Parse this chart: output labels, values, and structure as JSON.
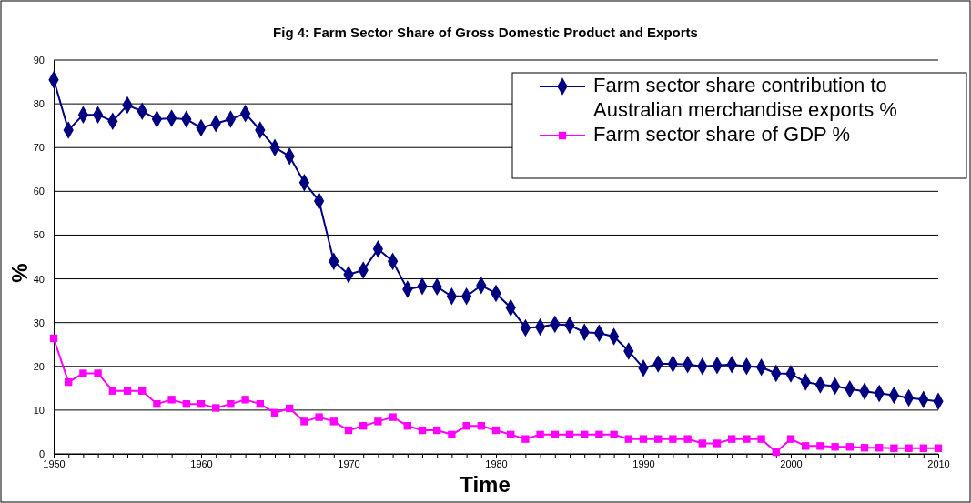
{
  "chart_data": {
    "type": "line",
    "title": "Fig 4: Farm Sector Share of Gross Domestic Product and Exports",
    "xlabel": "Time",
    "ylabel": "%",
    "x": [
      1950,
      1951,
      1952,
      1953,
      1954,
      1955,
      1956,
      1957,
      1958,
      1959,
      1960,
      1961,
      1962,
      1963,
      1964,
      1965,
      1966,
      1967,
      1968,
      1969,
      1970,
      1971,
      1972,
      1973,
      1974,
      1975,
      1976,
      1977,
      1978,
      1979,
      1980,
      1981,
      1982,
      1983,
      1984,
      1985,
      1986,
      1987,
      1988,
      1989,
      1990,
      1991,
      1992,
      1993,
      1994,
      1995,
      1996,
      1997,
      1998,
      1999,
      2000,
      2001,
      2002,
      2003,
      2004,
      2005,
      2006,
      2007,
      2008,
      2009,
      2010
    ],
    "series": [
      {
        "name": "Farm sector share contribution to Australian merchandise exports %",
        "color": "#000080",
        "marker": "diamond",
        "values": [
          85.5,
          74,
          77.5,
          77.5,
          76,
          79.7,
          78.3,
          76.5,
          76.7,
          76.5,
          74.5,
          75.5,
          76.5,
          77.8,
          74,
          70,
          68,
          62,
          57.8,
          44,
          41,
          42,
          46.8,
          44,
          37.6,
          38.3,
          38.2,
          36,
          36,
          38.5,
          36.7,
          33.4,
          28.8,
          29,
          29.6,
          29.4,
          27.8,
          27.6,
          26.8,
          23.5,
          19.6,
          20.6,
          20.6,
          20.4,
          20,
          20.2,
          20.4,
          20,
          19.8,
          18.4,
          18.3,
          16.4,
          15.8,
          15.5,
          14.8,
          14.3,
          13.8,
          13.4,
          12.8,
          12.4,
          12
        ]
      },
      {
        "name": "Farm sector share of GDP %",
        "color": "#ff00ff",
        "marker": "square",
        "values": [
          26.4,
          16.4,
          18.4,
          18.4,
          14.4,
          14.4,
          14.4,
          11.4,
          12.4,
          11.4,
          11.4,
          10.5,
          11.4,
          12.4,
          11.4,
          9.4,
          10.4,
          7.4,
          8.4,
          7.4,
          5.4,
          6.4,
          7.4,
          8.4,
          6.4,
          5.4,
          5.4,
          4.4,
          6.4,
          6.4,
          5.4,
          4.4,
          3.4,
          4.4,
          4.4,
          4.4,
          4.4,
          4.4,
          4.4,
          3.4,
          3.4,
          3.4,
          3.4,
          3.4,
          2.4,
          2.4,
          3.4,
          3.4,
          3.4,
          0.4,
          3.4,
          1.8,
          1.8,
          1.6,
          1.6,
          1.4,
          1.4,
          1.3,
          1.3,
          1.3,
          1.3
        ]
      }
    ],
    "xlim": [
      1950,
      2010
    ],
    "xticks": [
      1950,
      {
        "value": 1951,
        "label": null
      },
      {
        "value": 1952,
        "label": null
      },
      {
        "value": 1953,
        "label": null
      },
      {
        "value": 1954,
        "label": null
      },
      {
        "value": 1955,
        "label": null
      },
      {
        "value": 1956,
        "label": null
      },
      {
        "value": 1957,
        "label": null
      },
      {
        "value": 1958,
        "label": null
      },
      {
        "value": 1959,
        "label": null
      },
      1960,
      {
        "value": 1961,
        "label": null
      },
      {
        "value": 1962,
        "label": null
      },
      {
        "value": 1963,
        "label": null
      },
      {
        "value": 1964,
        "label": null
      },
      {
        "value": 1965,
        "label": null
      },
      {
        "value": 1966,
        "label": null
      },
      {
        "value": 1967,
        "label": null
      },
      {
        "value": 1968,
        "label": null
      },
      {
        "value": 1969,
        "label": null
      },
      1970,
      {
        "value": 1971,
        "label": null
      },
      {
        "value": 1972,
        "label": null
      },
      {
        "value": 1973,
        "label": null
      },
      {
        "value": 1974,
        "label": null
      },
      {
        "value": 1975,
        "label": null
      },
      {
        "value": 1976,
        "label": null
      },
      {
        "value": 1977,
        "label": null
      },
      {
        "value": 1978,
        "label": null
      },
      {
        "value": 1979,
        "label": null
      },
      1980,
      {
        "value": 1981,
        "label": null
      },
      {
        "value": 1982,
        "label": null
      },
      {
        "value": 1983,
        "label": null
      },
      {
        "value": 1984,
        "label": null
      },
      {
        "value": 1985,
        "label": null
      },
      {
        "value": 1986,
        "label": null
      },
      {
        "value": 1987,
        "label": null
      },
      {
        "value": 1988,
        "label": null
      },
      {
        "value": 1989,
        "label": null
      },
      1990,
      {
        "value": 1991,
        "label": null
      },
      {
        "value": 1992,
        "label": null
      },
      {
        "value": 1993,
        "label": null
      },
      {
        "value": 1994,
        "label": null
      },
      {
        "value": 1995,
        "label": null
      },
      {
        "value": 1996,
        "label": null
      },
      {
        "value": 1997,
        "label": null
      },
      {
        "value": 1998,
        "label": null
      },
      {
        "value": 1999,
        "label": null
      },
      2000,
      {
        "value": 2001,
        "label": null
      },
      {
        "value": 2002,
        "label": null
      },
      {
        "value": 2003,
        "label": null
      },
      {
        "value": 2004,
        "label": null
      },
      {
        "value": 2005,
        "label": null
      },
      {
        "value": 2006,
        "label": null
      },
      {
        "value": 2007,
        "label": null
      },
      {
        "value": 2008,
        "label": null
      },
      {
        "value": 2009,
        "label": null
      },
      2010
    ],
    "ylim": [
      0,
      90
    ],
    "yticks": [
      0,
      10,
      20,
      30,
      40,
      50,
      60,
      70,
      80,
      90
    ],
    "grid": "y",
    "legend": "top right",
    "line_style": "solid"
  }
}
